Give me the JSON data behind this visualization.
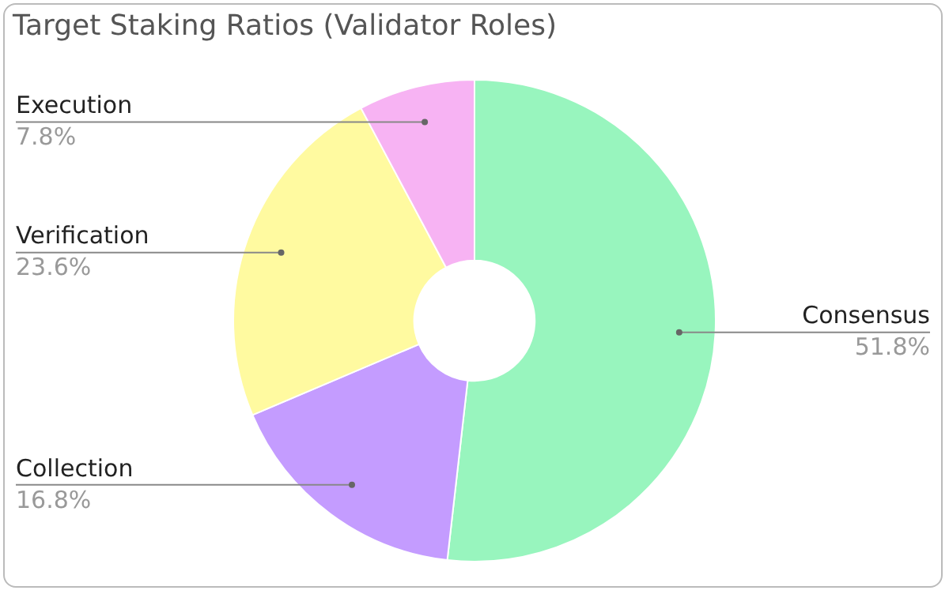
{
  "chart_data": {
    "type": "donut",
    "title": "Target Staking Ratios (Validator Roles)",
    "categories": [
      "Consensus",
      "Collection",
      "Verification",
      "Execution"
    ],
    "values": [
      51.8,
      16.8,
      23.6,
      7.8
    ],
    "value_labels": [
      "51.8%",
      "16.8%",
      "23.6%",
      "7.8%"
    ],
    "colors": [
      "#98f5be",
      "#c49cff",
      "#fffaa0",
      "#f7b3f3"
    ],
    "legend": false
  }
}
